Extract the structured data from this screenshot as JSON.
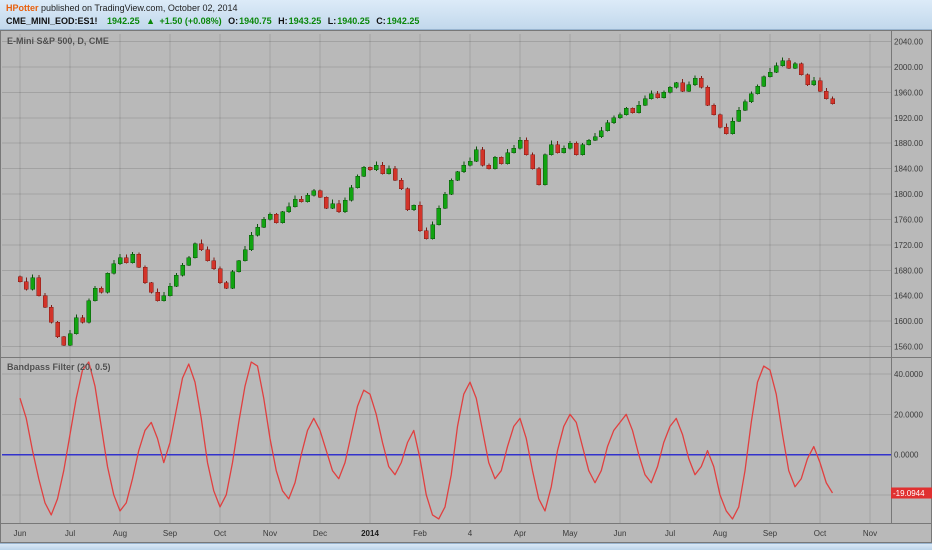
{
  "header": {
    "author": "HPotter",
    "published": " published on TradingView.com, October 02, 2014",
    "symbol": "CME_MINI_EOD:ES1!",
    "last": "1942.25",
    "arrow": "▲",
    "change": "+1.50 (+0.08%)",
    "o_label": "O:",
    "o": "1940.75",
    "h_label": "H:",
    "h": "1943.25",
    "l_label": "L:",
    "l": "1940.25",
    "c_label": "C:",
    "c": "1942.25"
  },
  "panes": {
    "price_title": "E-Mini S&P 500, D, CME",
    "indicator_title": "Bandpass Filter (20, 0.5)"
  },
  "colors": {
    "chart_bg": "#b9b9b9",
    "grid": "rgba(0,0,0,0.12)",
    "up": "#12a312",
    "up_dark": "#0b520b",
    "down": "#d2342a",
    "down_dark": "#801a14",
    "indicator_line": "#e04040",
    "zero_line": "#3333cc",
    "tag_bg": "#e03030",
    "axis_text": "#3a3a3a",
    "border": "#787878",
    "author_orange": "#e8600e",
    "value_green": "#0a870a"
  },
  "time_axis": {
    "months": [
      "Jun",
      "Jul",
      "Aug",
      "Sep",
      "Oct",
      "Nov",
      "Dec",
      "2014",
      "Feb",
      "4",
      "Apr",
      "May",
      "Jun",
      "Jul",
      "Aug",
      "Sep",
      "Oct",
      "Nov"
    ],
    "bold_label": "2014"
  },
  "chart_data": [
    {
      "type": "candlestick",
      "title": "E-Mini S&P 500, D, CME",
      "symbol": "CME_MINI_EOD:ES1!",
      "timeframe": "D",
      "ylim": [
        1545,
        2052
      ],
      "y_ticks": [
        2040,
        2000,
        1960,
        1920,
        1880,
        1840,
        1800,
        1760,
        1720,
        1680,
        1640,
        1600,
        1560
      ],
      "ohlc_last": {
        "o": 1940.75,
        "h": 1943.25,
        "l": 1940.25,
        "c": 1942.25
      },
      "closes": [
        1662,
        1650,
        1668,
        1640,
        1622,
        1598,
        1575,
        1562,
        1580,
        1605,
        1598,
        1632,
        1652,
        1645,
        1675,
        1690,
        1700,
        1692,
        1705,
        1685,
        1660,
        1645,
        1632,
        1640,
        1655,
        1672,
        1688,
        1700,
        1722,
        1712,
        1695,
        1682,
        1660,
        1652,
        1678,
        1695,
        1712,
        1735,
        1748,
        1760,
        1768,
        1755,
        1772,
        1780,
        1792,
        1788,
        1798,
        1805,
        1795,
        1778,
        1785,
        1772,
        1790,
        1810,
        1828,
        1842,
        1838,
        1845,
        1832,
        1840,
        1822,
        1808,
        1775,
        1782,
        1742,
        1730,
        1752,
        1778,
        1800,
        1822,
        1835,
        1845,
        1852,
        1870,
        1845,
        1840,
        1858,
        1848,
        1865,
        1872,
        1885,
        1862,
        1840,
        1815,
        1862,
        1878,
        1865,
        1872,
        1880,
        1862,
        1878,
        1885,
        1890,
        1900,
        1912,
        1920,
        1925,
        1935,
        1928,
        1940,
        1950,
        1958,
        1952,
        1960,
        1968,
        1975,
        1962,
        1972,
        1982,
        1968,
        1940,
        1925,
        1905,
        1895,
        1915,
        1932,
        1945,
        1958,
        1970,
        1985,
        1992,
        2002,
        2010,
        1998,
        2005,
        1988,
        1972,
        1978,
        1962,
        1950,
        1942.25
      ]
    },
    {
      "type": "line",
      "title": "Bandpass Filter (20, 0.5)",
      "ylim": [
        -34,
        47
      ],
      "y_ticks": [
        40,
        20,
        0
      ],
      "y_grid": [
        40,
        20,
        0,
        -20
      ],
      "zero_line": 0,
      "last_value": -19.0944,
      "last_label": "-19.0944",
      "values": [
        28,
        18,
        2,
        -12,
        -24,
        -30,
        -22,
        -8,
        10,
        28,
        42,
        46,
        34,
        14,
        -6,
        -20,
        -28,
        -24,
        -12,
        2,
        12,
        16,
        8,
        -4,
        6,
        22,
        38,
        45,
        36,
        18,
        -4,
        -18,
        -26,
        -20,
        -4,
        16,
        34,
        46,
        44,
        28,
        8,
        -8,
        -18,
        -22,
        -14,
        0,
        12,
        18,
        12,
        2,
        -8,
        -12,
        -4,
        10,
        24,
        32,
        30,
        20,
        6,
        -6,
        -10,
        -4,
        6,
        12,
        -2,
        -20,
        -30,
        -32,
        -26,
        -10,
        14,
        30,
        36,
        28,
        12,
        -4,
        -12,
        -8,
        4,
        14,
        18,
        8,
        -8,
        -22,
        -28,
        -16,
        2,
        14,
        20,
        16,
        4,
        -8,
        -14,
        -8,
        4,
        12,
        16,
        20,
        12,
        0,
        -10,
        -14,
        -6,
        6,
        14,
        18,
        10,
        -2,
        -10,
        -6,
        2,
        -6,
        -20,
        -28,
        -32,
        -26,
        -8,
        16,
        36,
        44,
        42,
        30,
        10,
        -8,
        -16,
        -12,
        -2,
        4,
        -4,
        -14,
        -19.0944
      ]
    }
  ]
}
